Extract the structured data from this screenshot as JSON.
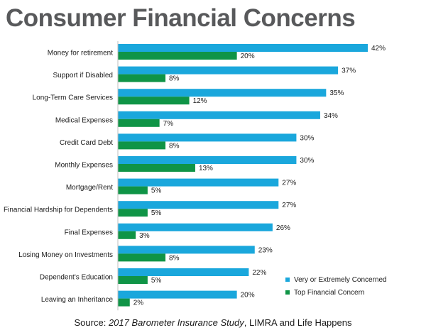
{
  "page": {
    "title": "Consumer Financial Concerns",
    "source_prefix": "Source: ",
    "source_italic": "2017 Barometer Insurance Study",
    "source_suffix": ", LIMRA and Life Happens"
  },
  "colors": {
    "series_1": "#1aa7dc",
    "series_2": "#0f9446",
    "title": "#58595b"
  },
  "chart_data": {
    "type": "bar",
    "orientation": "horizontal",
    "categories": [
      "Money for retirement",
      "Support if Disabled",
      "Long-Term Care Services",
      "Medical Expenses",
      "Credit Card Debt",
      "Monthly Expenses",
      "Mortgage/Rent",
      "Financial Hardship for Dependents",
      "Final Expenses",
      "Losing Money on Investments",
      "Dependent's Education",
      "Leaving an Inheritance"
    ],
    "series": [
      {
        "name": "Very or Extremely Concerned",
        "values": [
          42,
          37,
          35,
          34,
          30,
          30,
          27,
          27,
          26,
          23,
          22,
          20
        ]
      },
      {
        "name": "Top Financial Concern",
        "values": [
          20,
          8,
          12,
          7,
          8,
          13,
          5,
          5,
          3,
          8,
          5,
          2
        ]
      }
    ],
    "data_labels": [
      [
        "42%",
        "37%",
        "35%",
        "34%",
        "30%",
        "30%",
        "27%",
        "27%",
        "26%",
        "23%",
        "22%",
        "20%"
      ],
      [
        "20%",
        "8%",
        "12%",
        "7%",
        "8%",
        "13%",
        "5%",
        "5%",
        "3%",
        "8%",
        "5%",
        "2%"
      ]
    ],
    "unit": "%",
    "xlim": [
      0,
      42
    ],
    "grid": false,
    "legend_position": "bottom-right"
  }
}
